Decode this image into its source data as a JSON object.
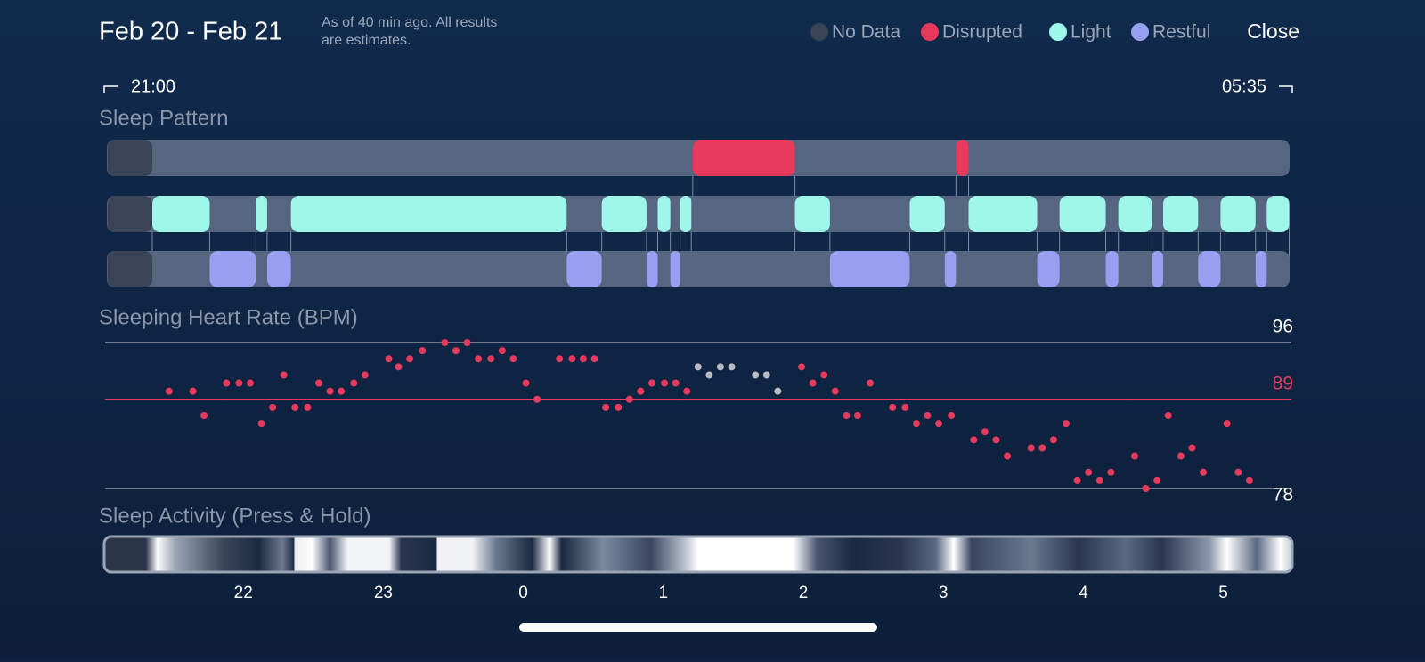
{
  "header": {
    "title": "Feb 20 - Feb 21",
    "note_line1": "As of 40 min ago. All results",
    "note_line2": "are estimates.",
    "legend": [
      {
        "label": "No Data",
        "color": "#3a4456"
      },
      {
        "label": "Disrupted",
        "color": "#e83a5c"
      },
      {
        "label": "Light",
        "color": "#9ff7ea"
      },
      {
        "label": "Restful",
        "color": "#979ff0"
      }
    ],
    "close": "Close"
  },
  "range": {
    "start": "21:00",
    "end": "05:35"
  },
  "sleep_pattern": {
    "title": "Sleep Pattern",
    "no_data": [
      0.03,
      0.35
    ],
    "disrupted": [
      [
        4.21,
        4.94
      ],
      [
        6.09,
        6.18
      ]
    ],
    "light": [
      [
        0.35,
        0.76
      ],
      [
        1.09,
        1.17
      ],
      [
        1.34,
        3.31
      ],
      [
        3.56,
        3.88
      ],
      [
        3.96,
        4.05
      ],
      [
        4.12,
        4.2
      ],
      [
        4.94,
        5.19
      ],
      [
        5.76,
        6.01
      ],
      [
        6.18,
        6.67
      ],
      [
        6.83,
        7.16
      ],
      [
        7.25,
        7.49
      ],
      [
        7.57,
        7.82
      ],
      [
        7.98,
        8.23
      ],
      [
        8.31,
        8.47
      ]
    ],
    "restful": [
      [
        0.76,
        1.09
      ],
      [
        1.17,
        1.34
      ],
      [
        3.31,
        3.56
      ],
      [
        3.88,
        3.96
      ],
      [
        4.05,
        4.12
      ],
      [
        5.19,
        5.76
      ],
      [
        6.01,
        6.09
      ],
      [
        6.67,
        6.83
      ],
      [
        7.16,
        7.25
      ],
      [
        7.49,
        7.57
      ],
      [
        7.82,
        7.98
      ],
      [
        8.23,
        8.31
      ]
    ]
  },
  "chart_data": {
    "type": "scatter",
    "title": "Sleeping Heart Rate (BPM)",
    "xlim": [
      0,
      8.49
    ],
    "ylim": [
      78,
      96
    ],
    "yticks": [
      78,
      96
    ],
    "reference": {
      "value": 89,
      "color": "#e83a5c"
    },
    "series": [
      {
        "color": "#e83a5c",
        "x": [
          0.47,
          0.64,
          0.72,
          0.88,
          0.97,
          1.05,
          1.13,
          1.21,
          1.29,
          1.37,
          1.46,
          1.54,
          1.62,
          1.7,
          1.79,
          1.87,
          2.04,
          2.11,
          2.19,
          2.28,
          2.44,
          2.52,
          2.6,
          2.68,
          2.77,
          2.85,
          2.93,
          3.02,
          3.1,
          3.26,
          3.35,
          3.43,
          3.51,
          3.59,
          3.68,
          3.76,
          3.84,
          3.92,
          4.01,
          4.09,
          4.17,
          4.99,
          5.07,
          5.15,
          5.23,
          5.31,
          5.39,
          5.48,
          5.64,
          5.73,
          5.81,
          5.89,
          5.97,
          6.06,
          6.22,
          6.3,
          6.38,
          6.46,
          6.63,
          6.71,
          6.79,
          6.88,
          6.96,
          7.04,
          7.12,
          7.2,
          7.37,
          7.45,
          7.53,
          7.61,
          7.7,
          7.78,
          7.86,
          8.03,
          8.11,
          8.19
        ],
        "values": [
          90,
          90,
          87,
          91,
          91,
          91,
          86,
          88,
          92,
          88,
          88,
          91,
          90,
          90,
          91,
          92,
          94,
          93,
          94,
          95,
          96,
          95,
          96,
          94,
          94,
          95,
          94,
          91,
          89,
          94,
          94,
          94,
          94,
          88,
          88,
          89,
          90,
          91,
          91,
          91,
          90,
          93,
          91,
          92,
          90,
          87,
          87,
          91,
          88,
          88,
          86,
          87,
          86,
          87,
          84,
          85,
          84,
          82,
          83,
          83,
          84,
          86,
          79,
          80,
          79,
          80,
          82,
          78,
          79,
          87,
          82,
          83,
          80,
          86,
          80,
          79
        ]
      },
      {
        "color": "#b8bcc4",
        "x": [
          4.25,
          4.33,
          4.41,
          4.49,
          4.66,
          4.74,
          4.82
        ],
        "values": [
          93,
          92,
          93,
          93,
          92,
          92,
          90
        ]
      }
    ]
  },
  "activity": {
    "title": "Sleep Activity (Press & Hold)",
    "ticks": [
      {
        "value": 1,
        "label": "22"
      },
      {
        "value": 2,
        "label": "23"
      },
      {
        "value": 3,
        "label": "0"
      },
      {
        "value": 4,
        "label": "1"
      },
      {
        "value": 5,
        "label": "2"
      },
      {
        "value": 6,
        "label": "3"
      },
      {
        "value": 7,
        "label": "4"
      },
      {
        "value": 8,
        "label": "5"
      }
    ]
  }
}
